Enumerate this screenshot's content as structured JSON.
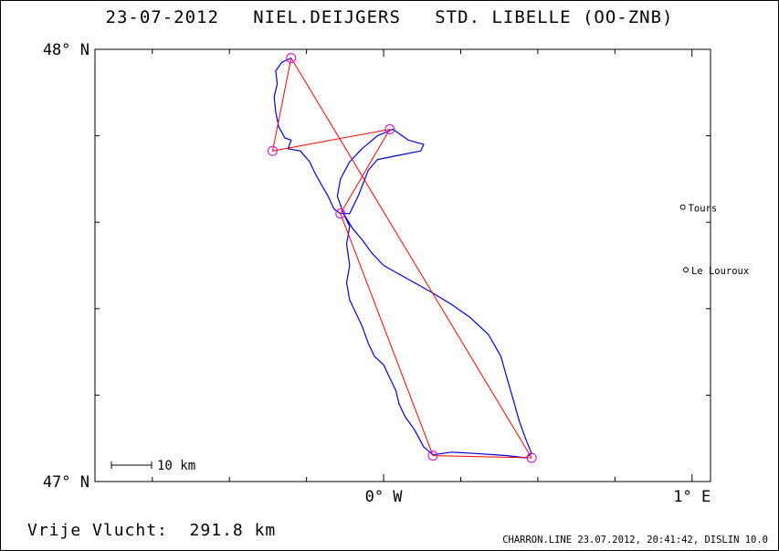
{
  "title": "23-07-2012   NIEL.DEIJGERS   STD. LIBELLE (OO-ZNB)",
  "distance_text": "Vrije Vlucht:  291.8 km",
  "footer_text": "CHARRON.LINE 23.07.2012, 20:41:42, DISLIN 10.0",
  "scale_label": "10 km",
  "colors": {
    "track": "#0000dd",
    "task": "#ff0000",
    "turnpoint": "#dd00dd",
    "axis": "#000000"
  },
  "chart_data": {
    "type": "line",
    "title": "23-07-2012   NIEL.DEIJGERS   STD. LIBELLE (OO-ZNB)",
    "xlim": [
      -0.936,
      1.06
    ],
    "ylim": [
      47.0,
      48.0
    ],
    "x_tick_labels": [
      {
        "x": 0.0,
        "label": "0° W"
      },
      {
        "x": 1.0,
        "label": "1° E"
      }
    ],
    "y_tick_labels": [
      {
        "y": 48.0,
        "label": "48° N"
      },
      {
        "y": 47.0,
        "label": "47° N"
      }
    ],
    "x_minor_ticks": [
      -0.75,
      -0.5,
      -0.25,
      0.25,
      0.5,
      0.75
    ],
    "y_minor_ticks": [
      47.2,
      47.4,
      47.6,
      47.8
    ],
    "places": [
      {
        "name": "Tours",
        "x": 0.97,
        "y": 47.635
      },
      {
        "name": "Le Louroux",
        "x": 0.98,
        "y": 47.49
      }
    ],
    "series": [
      {
        "kind": "task",
        "points": [
          [
            -0.3,
            47.98
          ],
          [
            -0.36,
            47.765
          ],
          [
            0.02,
            47.815
          ],
          [
            -0.14,
            47.62
          ],
          [
            0.16,
            47.06
          ],
          [
            0.48,
            47.055
          ],
          [
            -0.3,
            47.98
          ]
        ]
      },
      {
        "kind": "track",
        "points": [
          [
            -0.3,
            47.98
          ],
          [
            -0.33,
            47.97
          ],
          [
            -0.35,
            47.95
          ],
          [
            -0.345,
            47.92
          ],
          [
            -0.355,
            47.89
          ],
          [
            -0.35,
            47.855
          ],
          [
            -0.34,
            47.82
          ],
          [
            -0.32,
            47.795
          ],
          [
            -0.3,
            47.79
          ],
          [
            -0.31,
            47.77
          ],
          [
            -0.27,
            47.765
          ],
          [
            -0.24,
            47.74
          ],
          [
            -0.22,
            47.71
          ],
          [
            -0.2,
            47.685
          ],
          [
            -0.18,
            47.66
          ],
          [
            -0.16,
            47.63
          ],
          [
            -0.14,
            47.62
          ],
          [
            -0.11,
            47.62
          ],
          [
            -0.08,
            47.665
          ],
          [
            -0.05,
            47.72
          ],
          [
            -0.02,
            47.745
          ],
          [
            0.05,
            47.755
          ],
          [
            0.12,
            47.765
          ],
          [
            0.13,
            47.78
          ],
          [
            0.08,
            47.79
          ],
          [
            0.03,
            47.815
          ],
          [
            -0.02,
            47.8
          ],
          [
            -0.07,
            47.77
          ],
          [
            -0.11,
            47.74
          ],
          [
            -0.14,
            47.7
          ],
          [
            -0.15,
            47.66
          ],
          [
            -0.13,
            47.62
          ],
          [
            -0.1,
            47.585
          ],
          [
            -0.07,
            47.56
          ],
          [
            -0.04,
            47.53
          ],
          [
            0.0,
            47.5
          ],
          [
            0.05,
            47.48
          ],
          [
            0.1,
            47.46
          ],
          [
            0.15,
            47.44
          ],
          [
            0.22,
            47.41
          ],
          [
            0.28,
            47.38
          ],
          [
            0.34,
            47.34
          ],
          [
            0.38,
            47.29
          ],
          [
            0.4,
            47.24
          ],
          [
            0.42,
            47.19
          ],
          [
            0.44,
            47.14
          ],
          [
            0.46,
            47.1
          ],
          [
            0.48,
            47.065
          ],
          [
            0.46,
            47.055
          ],
          [
            0.4,
            47.06
          ],
          [
            0.3,
            47.065
          ],
          [
            0.22,
            47.068
          ],
          [
            0.16,
            47.062
          ],
          [
            0.13,
            47.08
          ],
          [
            0.1,
            47.12
          ],
          [
            0.07,
            47.15
          ],
          [
            0.05,
            47.18
          ],
          [
            0.04,
            47.21
          ],
          [
            0.02,
            47.24
          ],
          [
            0.0,
            47.27
          ],
          [
            -0.03,
            47.29
          ],
          [
            -0.05,
            47.32
          ],
          [
            -0.07,
            47.36
          ],
          [
            -0.09,
            47.39
          ],
          [
            -0.11,
            47.42
          ],
          [
            -0.12,
            47.46
          ],
          [
            -0.11,
            47.5
          ],
          [
            -0.12,
            47.55
          ],
          [
            -0.11,
            47.59
          ],
          [
            -0.13,
            47.62
          ]
        ]
      }
    ],
    "turnpoints": [
      [
        -0.3,
        47.98
      ],
      [
        -0.36,
        47.765
      ],
      [
        0.02,
        47.815
      ],
      [
        -0.14,
        47.62
      ],
      [
        0.16,
        47.06
      ],
      [
        0.48,
        47.055
      ]
    ]
  }
}
